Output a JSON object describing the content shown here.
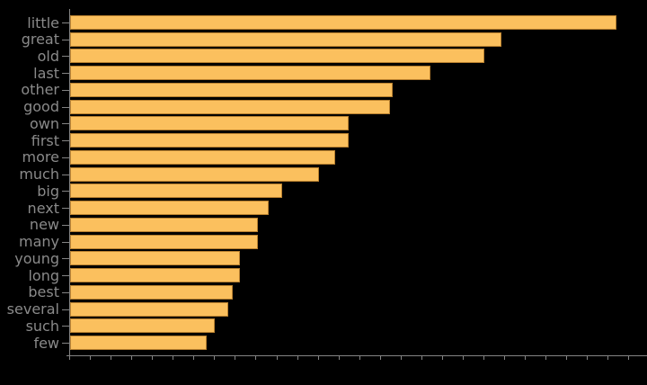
{
  "chart_data": {
    "type": "bar",
    "orientation": "horizontal",
    "title": "",
    "xlabel": "",
    "ylabel": "",
    "categories": [
      "little",
      "great",
      "old",
      "last",
      "other",
      "good",
      "own",
      "first",
      "more",
      "much",
      "big",
      "next",
      "new",
      "many",
      "young",
      "long",
      "best",
      "several",
      "such",
      "few"
    ],
    "values": [
      608,
      480,
      461,
      401,
      359,
      356,
      310,
      310,
      295,
      277,
      236,
      221,
      209,
      209,
      189,
      189,
      181,
      176,
      161,
      152
    ],
    "value_note": "x-axis ticks are unlabeled; values estimated in axis pixels from tick grid",
    "xlim": [
      0,
      643
    ],
    "x_tick_count": 28,
    "x_tick_spacing": 23.05,
    "grid": false,
    "legend": "none",
    "colors": {
      "background": "#000000",
      "bar_fill": "#FBC05E",
      "bar_edge": "#B8802F",
      "axis": "#848484",
      "tick_label": "#8A8A8A"
    }
  }
}
